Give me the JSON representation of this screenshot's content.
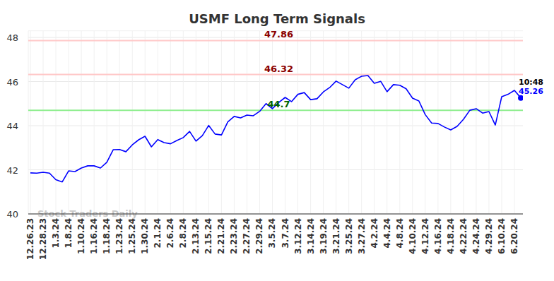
{
  "chart_data": {
    "type": "line",
    "title": "USMF Long Term Signals",
    "categories": [
      "12.26.23",
      null,
      "12.28.23",
      null,
      "1.3.24",
      null,
      "1.8.24",
      null,
      "1.10.24",
      null,
      "1.16.24",
      null,
      "1.18.24",
      null,
      "1.23.24",
      null,
      "1.25.24",
      null,
      "1.30.24",
      null,
      "2.1.24",
      null,
      "2.6.24",
      null,
      "2.8.24",
      null,
      "2.13.24",
      null,
      "2.15.24",
      null,
      "2.21.24",
      null,
      "2.23.24",
      null,
      "2.27.24",
      null,
      "2.29.24",
      null,
      "3.5.24",
      null,
      "3.7.24",
      null,
      "3.12.24",
      null,
      "3.14.24",
      null,
      "3.19.24",
      null,
      "3.21.24",
      null,
      "3.25.24",
      null,
      "3.27.24",
      null,
      "4.2.24",
      null,
      "4.4.24",
      null,
      "4.8.24",
      null,
      "4.10.24",
      null,
      "4.12.24",
      null,
      "4.16.24",
      null,
      "4.18.24",
      null,
      "4.22.24",
      null,
      "4.24.24",
      null,
      "4.29.24",
      null,
      "6.10.24",
      null,
      "6.20.24",
      null
    ],
    "values": [
      41.86,
      41.85,
      41.89,
      41.85,
      41.55,
      41.45,
      41.95,
      41.92,
      42.08,
      42.18,
      42.18,
      42.08,
      42.34,
      42.91,
      42.92,
      42.82,
      43.13,
      43.36,
      43.52,
      43.04,
      43.37,
      43.23,
      43.18,
      43.33,
      43.46,
      43.74,
      43.3,
      43.55,
      44.01,
      43.62,
      43.58,
      44.17,
      44.42,
      44.35,
      44.48,
      44.45,
      44.65,
      45.0,
      44.77,
      45.05,
      45.28,
      45.09,
      45.42,
      45.5,
      45.18,
      45.22,
      45.53,
      45.73,
      46.02,
      45.86,
      45.7,
      46.08,
      46.24,
      46.27,
      45.92,
      46.01,
      45.54,
      45.86,
      45.83,
      45.67,
      45.25,
      45.12,
      44.5,
      44.12,
      44.1,
      43.94,
      43.81,
      43.97,
      44.29,
      44.7,
      44.77,
      44.57,
      44.64,
      44.03,
      45.31,
      45.42,
      45.6,
      45.26
    ],
    "color": "#0000ff",
    "ylim": [
      40,
      48.3
    ],
    "yticks": [
      40,
      42,
      44,
      46,
      48
    ],
    "grid": true,
    "reference_lines": [
      {
        "value": 47.86,
        "color": "#ffc8c8",
        "text_color": "#8b0000"
      },
      {
        "value": 46.32,
        "color": "#ffc8c8",
        "text_color": "#8b0000"
      },
      {
        "value": 44.7,
        "color": "#90ee90",
        "text_color": "#006400"
      }
    ],
    "annotations": [
      {
        "text": "10:48"
      }
    ],
    "watermark": "Stock Traders Daily"
  }
}
